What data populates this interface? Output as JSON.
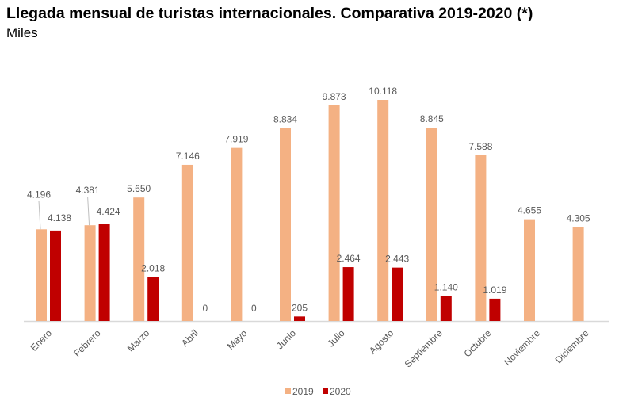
{
  "chart_data": {
    "type": "bar",
    "title": "Llegada mensual de turistas internacionales. Comparativa 2019-2020 (*)",
    "subtitle": "Miles",
    "categories": [
      "Enero",
      "Febrero",
      "Marzo",
      "Abril",
      "Mayo",
      "Junio",
      "Julio",
      "Agosto",
      "Septiembre",
      "Octubre",
      "Noviembre",
      "Diciembre"
    ],
    "series": [
      {
        "name": "2019",
        "color": "#F4B183",
        "values": [
          4196,
          4381,
          5650,
          7146,
          7919,
          8834,
          9873,
          10118,
          8845,
          7588,
          4655,
          4305
        ],
        "labels": [
          "4.196",
          "4.381",
          "5.650",
          "7.146",
          "7.919",
          "8.834",
          "9.873",
          "10.118",
          "8.845",
          "7.588",
          "4.655",
          "4.305"
        ]
      },
      {
        "name": "2020",
        "color": "#C00000",
        "values": [
          4138,
          4424,
          2018,
          0,
          0,
          205,
          2464,
          2443,
          1140,
          1019,
          null,
          null
        ],
        "labels": [
          "4.138",
          "4.424",
          "2.018",
          "0",
          "0",
          "205",
          "2.464",
          "2.443",
          "1.140",
          "1.019",
          null,
          null
        ]
      }
    ],
    "ylim": [
      0,
      10118
    ],
    "grid": false,
    "legend": "bottom"
  }
}
